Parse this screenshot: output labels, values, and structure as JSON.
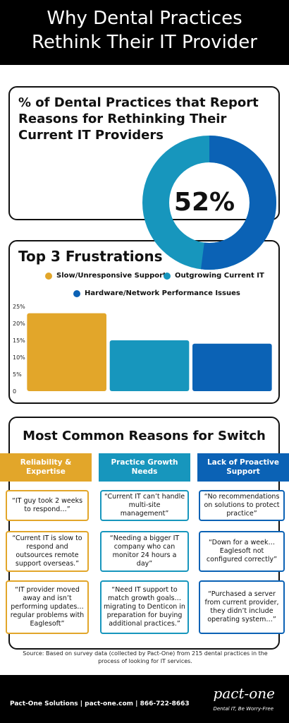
{
  "header": {
    "line1": "Why Dental Practices",
    "line2": "Rethink Their IT Provider"
  },
  "card1": {
    "title": "% of Dental Practices that Report Reasons for Rethinking Their Current IT Providers",
    "donut_label": "52%",
    "donut_value": 52,
    "colors": {
      "filled": "#0b62b5",
      "remainder": "#1796bd"
    }
  },
  "card2": {
    "title": "Top 3 Frustrations",
    "legend": [
      {
        "label": "Slow/Unresponsive Support",
        "color": "#e2a62a"
      },
      {
        "label": "Outgrowing Current IT",
        "color": "#1796bd"
      },
      {
        "label": "Hardware/Network Performance Issues",
        "color": "#0b62b5"
      }
    ]
  },
  "chart_data": {
    "type": "bar",
    "categories": [
      "Slow/Unresponsive Support",
      "Outgrowing Current IT",
      "Hardware/Network Performance Issues"
    ],
    "values": [
      23,
      15,
      14
    ],
    "colors": [
      "#e2a62a",
      "#1796bd",
      "#0b62b5"
    ],
    "yticks": [
      "25%",
      "20%",
      "15%",
      "10%",
      "5%",
      "0"
    ],
    "ylim": [
      0,
      25
    ],
    "title": "",
    "xlabel": "",
    "ylabel": ""
  },
  "card3": {
    "title": "Most Common Reasons for Switch",
    "columns": [
      {
        "heading": "Reliability & Expertise",
        "color": "#e2a62a",
        "quotes": [
          "“IT guy took 2 weeks to respond…”",
          "“Current IT is slow to respond and outsources remote support overseas.”",
          "“IT provider moved away and isn’t performing updates…regular problems with Eaglesoft”"
        ]
      },
      {
        "heading": "Practice Growth Needs",
        "color": "#1796bd",
        "quotes": [
          "“Current IT can’t handle multi-site management”",
          "“Needing a bigger IT company who can monitor 24 hours a day”",
          "“Need IT support to match growth goals…migrating to Denticon in preparation for buying additional practices.”"
        ]
      },
      {
        "heading": "Lack of Proactive Support",
        "color": "#0b62b5",
        "quotes": [
          "“No recommendations on solutions to protect practice”",
          "“Down for a week…Eaglesoft not configured correctly”",
          "“Purchased a server from current provider, they didn’t include operating system…”"
        ]
      }
    ]
  },
  "source": "Source: Based on survey data (collected by Pact-One) from 215 dental practices in the process of looking for IT services.",
  "footer": {
    "contact": "Pact-One Solutions | pact-one.com | 866-722-8663",
    "logo": "pact-one",
    "tagline": "Dental IT, Be Worry-Free"
  }
}
